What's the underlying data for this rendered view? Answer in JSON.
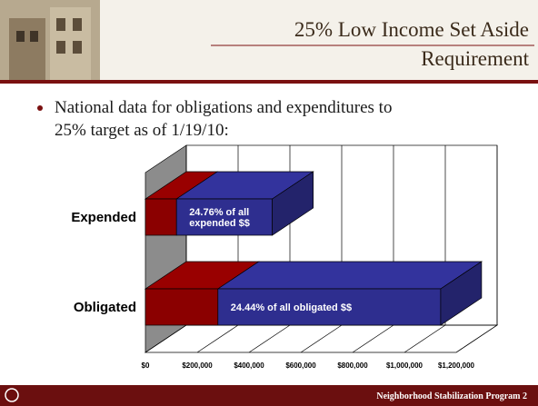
{
  "slide": {
    "title_lines": [
      "25% Low Income Set Aside",
      "Requirement"
    ],
    "bullet_lines": [
      "National data for obligations and expenditures to",
      "25% target as of 1/19/10:"
    ],
    "footer": "Neighborhood Stabilization Program 2"
  },
  "chart_data": {
    "type": "bar",
    "orientation": "horizontal",
    "stacked": true,
    "three_d": true,
    "categories": [
      "Expended",
      "Obligated"
    ],
    "series": [
      {
        "color": "#8b0000",
        "values": [
          120000,
          280000
        ]
      },
      {
        "color": "#2e2e8f",
        "values": [
          370000,
          860000
        ]
      }
    ],
    "annotations": [
      [
        "24.76% of all",
        "expended $$"
      ],
      [
        "24.44% of all obligated $$"
      ]
    ],
    "xlim": [
      0,
      1200000
    ],
    "xticks": [
      {
        "value": 0,
        "label": "$0"
      },
      {
        "value": 200000,
        "label": "$200,000"
      },
      {
        "value": 400000,
        "label": "$400,000"
      },
      {
        "value": 600000,
        "label": "$600,000"
      },
      {
        "value": 800000,
        "label": "$800,000"
      },
      {
        "value": 1000000,
        "label": "$1,000,000"
      },
      {
        "value": 1200000,
        "label": "$1,200,000"
      }
    ],
    "grid": true
  }
}
